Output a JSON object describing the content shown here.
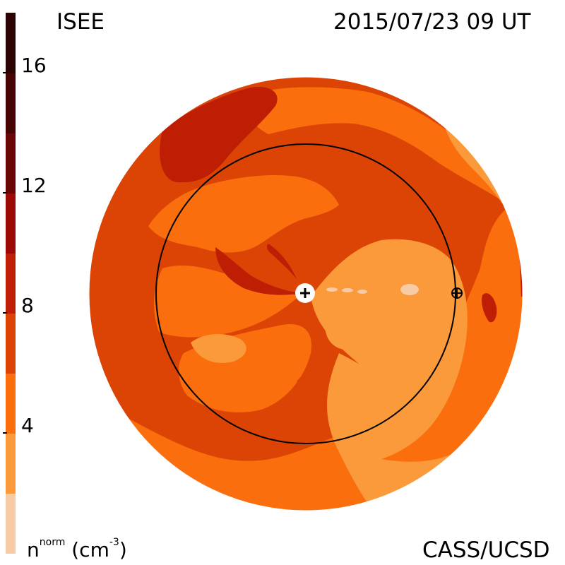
{
  "header": {
    "left_label": "ISEE",
    "right_label": "2015/07/23 09 UT"
  },
  "footer": {
    "right_label": "CASS/UCSD"
  },
  "colorbar": {
    "title_base": "n",
    "title_sup": "norm",
    "title_units": " (cm",
    "title_units_exp": "-3",
    "title_close": ")",
    "ticks": [
      {
        "label": "16",
        "value": 16
      },
      {
        "label": "12",
        "value": 12
      },
      {
        "label": "8",
        "value": 8
      },
      {
        "label": "4",
        "value": 4
      }
    ],
    "levels": [
      {
        "min": 0,
        "max": 2,
        "color": "#F6CBA6"
      },
      {
        "min": 2,
        "max": 4,
        "color": "#FB9A3A"
      },
      {
        "min": 4,
        "max": 6,
        "color": "#FA6E0D"
      },
      {
        "min": 6,
        "max": 8,
        "color": "#DC4406"
      },
      {
        "min": 8,
        "max": 10,
        "color": "#BD1E04"
      },
      {
        "min": 10,
        "max": 12,
        "color": "#9C0A06"
      },
      {
        "min": 12,
        "max": 14,
        "color": "#6A0606"
      },
      {
        "min": 14,
        "max": 16,
        "color": "#460404"
      },
      {
        "min": 16,
        "max": 18,
        "color": "#2B0303"
      }
    ]
  },
  "markers": {
    "sun_symbol": "+",
    "earth_symbol": "⊕"
  },
  "colors": {
    "disk_base": "#DC4406",
    "orbit": "#000000"
  }
}
